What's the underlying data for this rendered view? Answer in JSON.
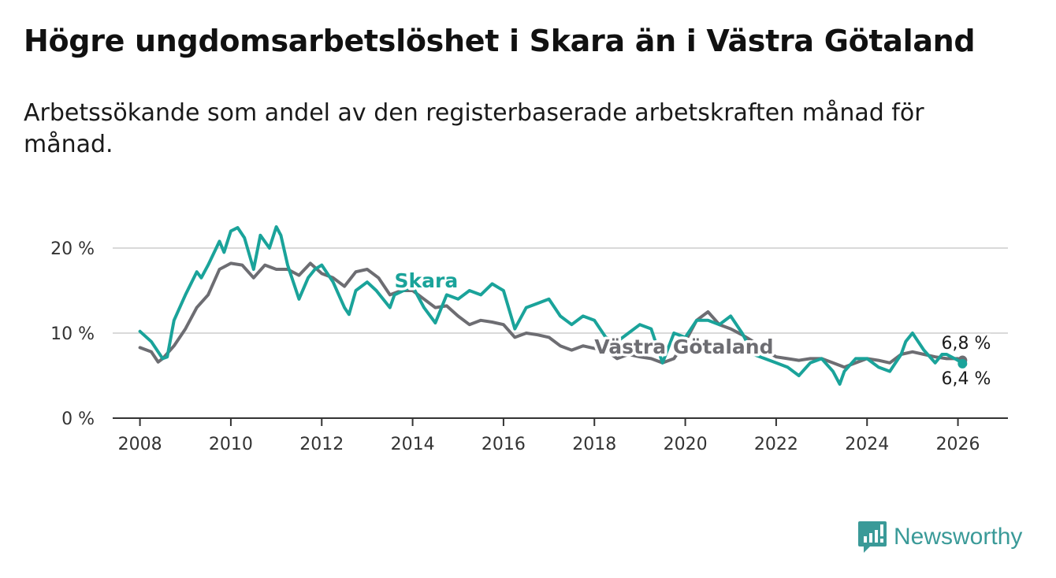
{
  "title": "Högre ungdomsarbetslöshet i Skara än i Västra Götaland",
  "subtitle": "Arbetssökande som andel av den registerbaserade arbetskraften månad för månad.",
  "brand": {
    "name": "Newsworthy",
    "icon": "newsworthy-logo-icon"
  },
  "colors": {
    "skara": "#1aa39a",
    "vastra_gotaland": "#6d6d72",
    "grid": "#d9d9d9",
    "axis": "#333333"
  },
  "chart_data": {
    "type": "line",
    "title": "Högre ungdomsarbetslöshet i Skara än i Västra Götaland",
    "xlabel": "",
    "ylabel": "",
    "xlim": [
      2007.4,
      2027.1
    ],
    "ylim": [
      0,
      20
    ],
    "x_ticks": [
      2008,
      2010,
      2012,
      2014,
      2016,
      2018,
      2020,
      2022,
      2024,
      2026
    ],
    "x_tick_labels": [
      "2008",
      "2010",
      "2012",
      "2014",
      "2016",
      "2018",
      "2020",
      "2022",
      "2024",
      "2026"
    ],
    "y_ticks": [
      0,
      10,
      20
    ],
    "y_tick_labels": [
      "0 %",
      "10 %",
      "20 %"
    ],
    "grid": true,
    "series": [
      {
        "name": "Skara",
        "label": "Skara",
        "end_label": "6,4 %",
        "x": [
          2008.0,
          2008.25,
          2008.5,
          2008.6,
          2008.75,
          2009.0,
          2009.25,
          2009.35,
          2009.5,
          2009.75,
          2009.85,
          2010.0,
          2010.15,
          2010.3,
          2010.5,
          2010.65,
          2010.85,
          2011.0,
          2011.1,
          2011.25,
          2011.5,
          2011.7,
          2011.85,
          2012.0,
          2012.25,
          2012.5,
          2012.6,
          2012.75,
          2013.0,
          2013.2,
          2013.5,
          2013.6,
          2014.0,
          2014.25,
          2014.5,
          2014.75,
          2015.0,
          2015.25,
          2015.5,
          2015.75,
          2016.0,
          2016.25,
          2016.5,
          2016.75,
          2017.0,
          2017.25,
          2017.5,
          2017.75,
          2018.0,
          2018.25,
          2018.5,
          2018.75,
          2019.0,
          2019.25,
          2019.5,
          2019.75,
          2020.0,
          2020.25,
          2020.5,
          2020.75,
          2021.0,
          2021.25,
          2021.5,
          2021.75,
          2022.0,
          2022.25,
          2022.5,
          2022.75,
          2023.0,
          2023.25,
          2023.4,
          2023.5,
          2023.75,
          2024.0,
          2024.25,
          2024.5,
          2024.75,
          2024.85,
          2025.0,
          2025.25,
          2025.5,
          2025.65,
          2025.75,
          2026.0,
          2026.1
        ],
        "values": [
          10.2,
          9.0,
          7.0,
          7.2,
          11.5,
          14.5,
          17.2,
          16.5,
          18.0,
          20.8,
          19.5,
          22.0,
          22.4,
          21.2,
          17.5,
          21.5,
          20.0,
          22.5,
          21.5,
          18.0,
          14.0,
          16.5,
          17.5,
          18.0,
          16.0,
          13.0,
          12.2,
          15.0,
          16.0,
          15.0,
          13.0,
          14.5,
          15.5,
          13.0,
          11.2,
          14.5,
          14.0,
          15.0,
          14.5,
          15.8,
          15.0,
          10.5,
          13.0,
          13.5,
          14.0,
          12.0,
          11.0,
          12.0,
          11.5,
          9.5,
          9.0,
          10.0,
          11.0,
          10.5,
          6.5,
          10.0,
          9.5,
          11.5,
          11.5,
          11.0,
          12.0,
          10.0,
          7.5,
          7.0,
          6.5,
          6.0,
          5.0,
          6.5,
          7.0,
          5.5,
          4.0,
          5.5,
          7.0,
          7.0,
          6.0,
          5.5,
          7.5,
          9.0,
          10.0,
          8.0,
          6.5,
          7.5,
          7.5,
          6.8,
          6.4
        ]
      },
      {
        "name": "Västra Götaland",
        "label": "Västra Götaland",
        "end_label": "6,8 %",
        "x": [
          2008.0,
          2008.25,
          2008.4,
          2008.5,
          2008.75,
          2009.0,
          2009.25,
          2009.5,
          2009.75,
          2010.0,
          2010.25,
          2010.5,
          2010.75,
          2011.0,
          2011.25,
          2011.5,
          2011.75,
          2012.0,
          2012.25,
          2012.5,
          2012.75,
          2013.0,
          2013.25,
          2013.5,
          2013.75,
          2014.0,
          2014.25,
          2014.5,
          2014.75,
          2015.0,
          2015.25,
          2015.5,
          2015.75,
          2016.0,
          2016.25,
          2016.5,
          2016.75,
          2017.0,
          2017.25,
          2017.5,
          2017.75,
          2018.0,
          2018.25,
          2018.5,
          2018.75,
          2019.0,
          2019.25,
          2019.5,
          2019.75,
          2020.0,
          2020.25,
          2020.5,
          2020.75,
          2021.0,
          2021.25,
          2021.5,
          2021.75,
          2022.0,
          2022.25,
          2022.5,
          2022.75,
          2023.0,
          2023.25,
          2023.5,
          2023.75,
          2024.0,
          2024.25,
          2024.5,
          2024.75,
          2025.0,
          2025.25,
          2025.5,
          2025.75,
          2026.0,
          2026.1
        ],
        "values": [
          8.3,
          7.8,
          6.6,
          7.0,
          8.5,
          10.5,
          13.0,
          14.5,
          17.5,
          18.2,
          18.0,
          16.5,
          18.0,
          17.5,
          17.5,
          16.8,
          18.2,
          17.0,
          16.5,
          15.5,
          17.2,
          17.5,
          16.5,
          14.5,
          15.0,
          15.0,
          14.0,
          13.0,
          13.2,
          12.0,
          11.0,
          11.5,
          11.3,
          11.0,
          9.5,
          10.0,
          9.8,
          9.5,
          8.5,
          8.0,
          8.5,
          8.2,
          8.0,
          7.0,
          7.5,
          7.2,
          7.0,
          6.5,
          7.0,
          9.0,
          11.5,
          12.5,
          11.0,
          10.5,
          9.8,
          9.0,
          8.0,
          7.2,
          7.0,
          6.8,
          7.0,
          7.0,
          6.5,
          6.0,
          6.5,
          7.0,
          6.8,
          6.5,
          7.5,
          7.8,
          7.5,
          7.2,
          7.0,
          7.0,
          6.8
        ]
      }
    ]
  }
}
